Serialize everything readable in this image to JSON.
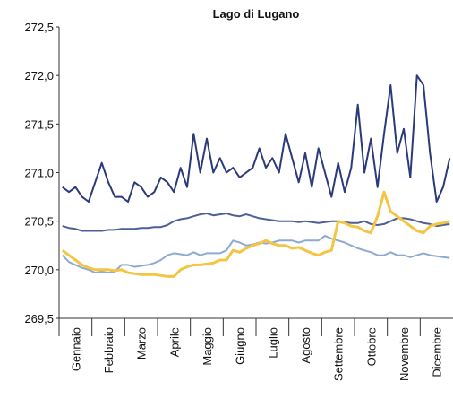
{
  "chart_data": {
    "type": "line",
    "title": "Lago di Lugano",
    "categories": [
      null,
      null,
      "Gennaio",
      null,
      null,
      null,
      null,
      "Febbraio",
      null,
      null,
      null,
      null,
      "Marzo",
      null,
      null,
      null,
      null,
      "Aprile",
      null,
      null,
      null,
      null,
      "Maggio",
      null,
      null,
      null,
      null,
      "Giugno",
      null,
      null,
      null,
      null,
      "Luglio",
      null,
      null,
      null,
      null,
      "Agosto",
      null,
      null,
      null,
      null,
      "Settembre",
      null,
      null,
      null,
      null,
      "Ottobre",
      null,
      null,
      null,
      null,
      "Novembre",
      null,
      null,
      null,
      null,
      "Dicembre",
      null,
      null
    ],
    "series": [
      {
        "color": "#2b3a7a",
        "values": [
          270.85,
          270.8,
          270.85,
          270.75,
          270.7,
          270.9,
          271.1,
          270.9,
          270.75,
          270.75,
          270.7,
          270.9,
          270.85,
          270.75,
          270.8,
          270.95,
          270.9,
          270.8,
          271.05,
          270.85,
          271.4,
          271.0,
          271.35,
          271.0,
          271.15,
          271.0,
          271.05,
          270.95,
          271.0,
          271.05,
          271.25,
          271.05,
          271.15,
          271.0,
          271.4,
          271.15,
          270.9,
          271.2,
          270.85,
          271.25,
          271.0,
          270.75,
          271.1,
          270.8,
          271.05,
          271.7,
          271.0,
          271.35,
          270.85,
          271.4,
          271.9,
          271.2,
          271.45,
          270.95,
          272.0,
          271.9,
          271.2,
          270.7,
          270.85,
          271.15
        ]
      },
      {
        "color": "#4e5f98",
        "values": [
          270.45,
          270.43,
          270.42,
          270.4,
          270.4,
          270.4,
          270.4,
          270.41,
          270.41,
          270.42,
          270.42,
          270.42,
          270.43,
          270.43,
          270.44,
          270.44,
          270.46,
          270.5,
          270.52,
          270.53,
          270.55,
          270.57,
          270.58,
          270.56,
          270.57,
          270.58,
          270.56,
          270.55,
          270.57,
          270.55,
          270.53,
          270.52,
          270.51,
          270.5,
          270.5,
          270.5,
          270.49,
          270.5,
          270.49,
          270.48,
          270.49,
          270.5,
          270.5,
          270.49,
          270.48,
          270.48,
          270.5,
          270.47,
          270.46,
          270.47,
          270.5,
          270.53,
          270.53,
          270.52,
          270.5,
          270.48,
          270.47,
          270.45,
          270.46,
          270.47
        ]
      },
      {
        "color": "#8eaad2",
        "values": [
          270.15,
          270.08,
          270.05,
          270.02,
          270.0,
          269.97,
          269.98,
          269.97,
          269.98,
          270.05,
          270.05,
          270.03,
          270.04,
          270.05,
          270.07,
          270.1,
          270.15,
          270.17,
          270.16,
          270.15,
          270.18,
          270.15,
          270.17,
          270.17,
          270.17,
          270.2,
          270.3,
          270.28,
          270.25,
          270.26,
          270.28,
          270.27,
          270.28,
          270.3,
          270.3,
          270.3,
          270.28,
          270.3,
          270.3,
          270.3,
          270.35,
          270.32,
          270.3,
          270.28,
          270.25,
          270.22,
          270.2,
          270.18,
          270.15,
          270.15,
          270.18,
          270.15,
          270.15,
          270.13,
          270.15,
          270.17,
          270.15,
          270.14,
          270.13,
          270.12
        ]
      },
      {
        "color": "#f4c443",
        "values": [
          270.2,
          270.15,
          270.1,
          270.05,
          270.02,
          270.0,
          270.0,
          270.0,
          269.99,
          270.0,
          269.97,
          269.96,
          269.95,
          269.95,
          269.95,
          269.94,
          269.93,
          269.93,
          270.0,
          270.03,
          270.05,
          270.05,
          270.06,
          270.07,
          270.1,
          270.1,
          270.2,
          270.18,
          270.22,
          270.25,
          270.27,
          270.3,
          270.27,
          270.25,
          270.25,
          270.22,
          270.23,
          270.2,
          270.17,
          270.15,
          270.18,
          270.2,
          270.5,
          270.48,
          270.45,
          270.44,
          270.4,
          270.38,
          270.55,
          270.8,
          270.6,
          270.55,
          270.5,
          270.45,
          270.4,
          270.38,
          270.45,
          270.47,
          270.48,
          270.5
        ]
      }
    ],
    "ylim": [
      269.5,
      272.5
    ],
    "yticks": [
      {
        "value": 269.5,
        "label": "269,5"
      },
      {
        "value": 270,
        "label": "270,0"
      },
      {
        "value": 270.5,
        "label": "270,5"
      },
      {
        "value": 271,
        "label": "271,0"
      },
      {
        "value": 271.5,
        "label": "271,5"
      },
      {
        "value": 272,
        "label": "272,0"
      },
      {
        "value": 272.5,
        "label": "272,5"
      }
    ]
  }
}
